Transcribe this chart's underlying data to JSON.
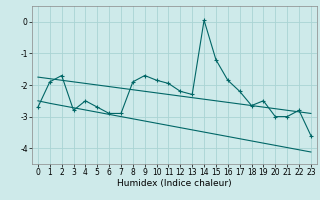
{
  "title": "",
  "xlabel": "Humidex (Indice chaleur)",
  "ylabel": "",
  "bg_color": "#ceeaea",
  "grid_color": "#aad4d4",
  "line_color": "#006666",
  "xlim": [
    -0.5,
    23.5
  ],
  "ylim": [
    -4.5,
    0.5
  ],
  "xticks": [
    0,
    1,
    2,
    3,
    4,
    5,
    6,
    7,
    8,
    9,
    10,
    11,
    12,
    13,
    14,
    15,
    16,
    17,
    18,
    19,
    20,
    21,
    22,
    23
  ],
  "yticks": [
    0,
    -1,
    -2,
    -3,
    -4
  ],
  "x": [
    0,
    1,
    2,
    3,
    4,
    5,
    6,
    7,
    8,
    9,
    10,
    11,
    12,
    13,
    14,
    15,
    16,
    17,
    18,
    19,
    20,
    21,
    22,
    23
  ],
  "y_main": [
    -2.7,
    -1.9,
    -1.7,
    -2.8,
    -2.5,
    -2.7,
    -2.9,
    -2.9,
    -1.9,
    -1.7,
    -1.85,
    -1.95,
    -2.2,
    -2.3,
    0.05,
    -1.2,
    -1.85,
    -2.2,
    -2.65,
    -2.5,
    -3.0,
    -3.0,
    -2.8,
    -3.6
  ],
  "y_trend1": [
    -1.75,
    -1.8,
    -1.85,
    -1.9,
    -1.95,
    -2.0,
    -2.05,
    -2.1,
    -2.15,
    -2.2,
    -2.25,
    -2.3,
    -2.35,
    -2.4,
    -2.45,
    -2.5,
    -2.55,
    -2.6,
    -2.65,
    -2.7,
    -2.75,
    -2.8,
    -2.85,
    -2.9
  ],
  "y_trend2": [
    -2.5,
    -2.58,
    -2.65,
    -2.72,
    -2.79,
    -2.86,
    -2.93,
    -3.0,
    -3.07,
    -3.14,
    -3.21,
    -3.28,
    -3.35,
    -3.42,
    -3.49,
    -3.56,
    -3.63,
    -3.7,
    -3.77,
    -3.84,
    -3.91,
    -3.98,
    -4.05,
    -4.12
  ],
  "tick_fontsize": 5.5,
  "xlabel_fontsize": 6.5
}
